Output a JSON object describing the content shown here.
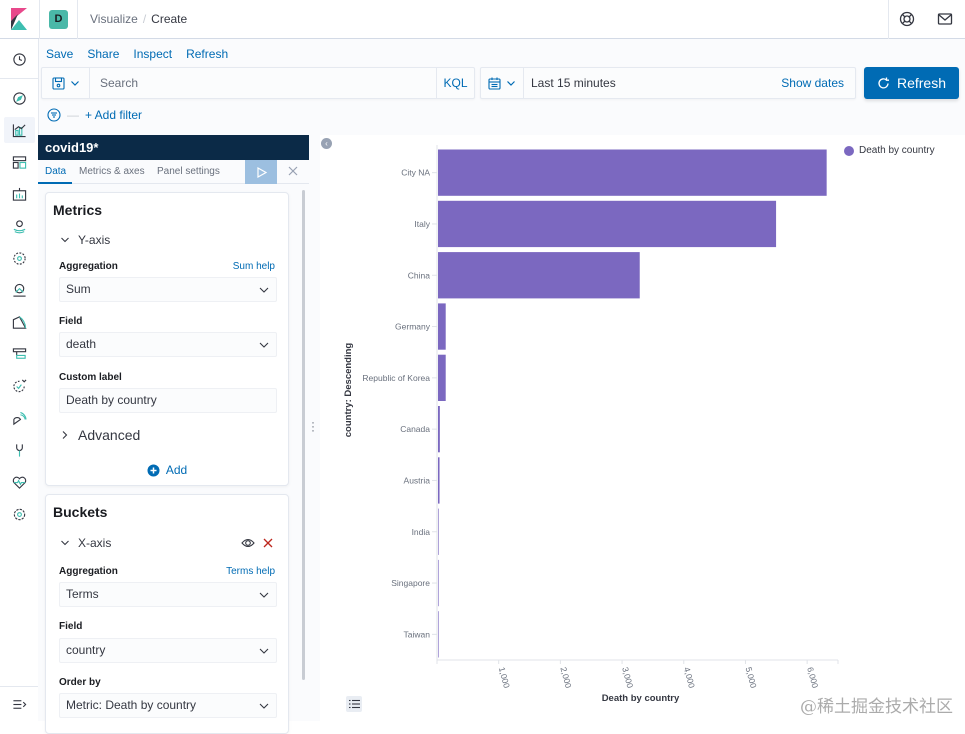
{
  "header": {
    "space_initial": "D",
    "breadcrumbs": [
      "Visualize",
      "Create"
    ],
    "breadcrumb_separator": "/"
  },
  "colors": {
    "primary": "#006bb4",
    "bar": "#7b68c0",
    "editor_title_bg": "#0b2a47",
    "space_badge": "#4ab8a8",
    "danger": "#bd271e"
  },
  "sidenav": {
    "items": [
      "recently-viewed",
      "discover",
      "visualize",
      "dashboard",
      "canvas",
      "maps",
      "machine-learning",
      "infrastructure",
      "logs",
      "apm",
      "uptime",
      "siem",
      "dev-tools",
      "monitoring",
      "management"
    ],
    "active": "visualize",
    "footer": "dock-navigation"
  },
  "topnav": {
    "save": "Save",
    "share": "Share",
    "inspect": "Inspect",
    "refresh": "Refresh"
  },
  "query": {
    "placeholder": "Search",
    "value": "",
    "language": "KQL"
  },
  "datepicker": {
    "value": "Last 15 minutes",
    "show_dates": "Show dates"
  },
  "refresh_button": "Refresh",
  "filter": {
    "add_filter": "+ Add filter"
  },
  "editor": {
    "title": "covid19*",
    "tabs": [
      "Data",
      "Metrics & axes",
      "Panel settings"
    ],
    "active_tab": "Data",
    "metrics": {
      "title": "Metrics",
      "y_axis": {
        "label": "Y-axis",
        "aggregation_label": "Aggregation",
        "aggregation_help": "Sum help",
        "aggregation_value": "Sum",
        "field_label": "Field",
        "field_value": "death",
        "custom_label_label": "Custom label",
        "custom_label_value": "Death by country",
        "advanced": "Advanced"
      },
      "add": "Add"
    },
    "buckets": {
      "title": "Buckets",
      "x_axis": {
        "label": "X-axis",
        "aggregation_label": "Aggregation",
        "aggregation_help": "Terms help",
        "aggregation_value": "Terms",
        "field_label": "Field",
        "field_value": "country",
        "order_by_label": "Order by",
        "order_by_value": "Metric: Death by country"
      }
    }
  },
  "chart_data": {
    "type": "bar",
    "orientation": "horizontal",
    "categories": [
      "City NA",
      "Italy",
      "China",
      "Germany",
      "Republic of Korea",
      "Canada",
      "Austria",
      "India",
      "Singapore",
      "Taiwan"
    ],
    "series": [
      {
        "name": "Death by country",
        "color": "#7b68c0",
        "values": [
          6300,
          5480,
          3270,
          125,
          125,
          30,
          25,
          10,
          2,
          1
        ]
      }
    ],
    "xlabel": "Death by country",
    "ylabel": "country: Descending",
    "xlim": [
      0,
      6500
    ],
    "xticks": [
      1000,
      2000,
      3000,
      4000,
      5000,
      6000
    ],
    "xtick_labels": [
      "1,000",
      "2,000",
      "3,000",
      "4,000",
      "5,000",
      "6,000"
    ],
    "legend": {
      "position": "top-right",
      "entries": [
        "Death by country"
      ]
    },
    "grid": false
  },
  "watermark": "@稀土掘金技术社区"
}
